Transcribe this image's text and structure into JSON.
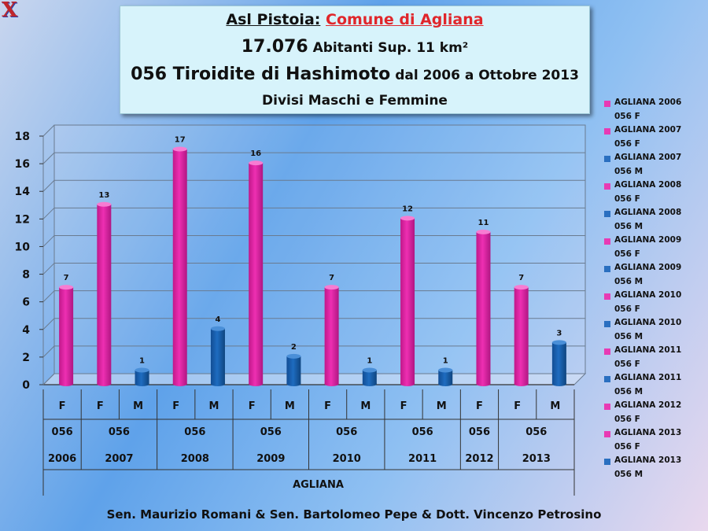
{
  "header": {
    "logo": "X",
    "line1_prefix": "Asl Pistoia:",
    "line1_highlight": "Comune di Agliana",
    "line2_big": "17.076",
    "line2_rest": "Abitanti Sup. 11 km²",
    "line3_big": "056 Tiroidite di Hashimoto",
    "line3_rest": "dal 2006 a Ottobre 2013",
    "line4": "Divisi Maschi e Femmine"
  },
  "footer": "Sen. Maurizio Romani & Sen. Bartolomeo Pepe & Dott. Vincenzo Petrosino",
  "colors": {
    "female": "#ee2fb2",
    "male": "#1e6cc0",
    "female_legend": "#e83ab4",
    "male_legend": "#2a6fc0"
  },
  "chart_data": {
    "type": "bar",
    "ylim": [
      0,
      18
    ],
    "yticks": [
      0,
      2,
      4,
      6,
      8,
      10,
      12,
      14,
      16,
      18
    ],
    "grid": true,
    "legend_position": "right",
    "xlabel": "AGLIANA",
    "bars": [
      {
        "sex": "F",
        "code": "056",
        "year": "2006",
        "value": 7
      },
      {
        "sex": "F",
        "code": "056",
        "year": "2007",
        "value": 13
      },
      {
        "sex": "M",
        "code": "056",
        "year": "2007",
        "value": 1
      },
      {
        "sex": "F",
        "code": "056",
        "year": "2008",
        "value": 17
      },
      {
        "sex": "M",
        "code": "056",
        "year": "2008",
        "value": 4
      },
      {
        "sex": "F",
        "code": "056",
        "year": "2009",
        "value": 16
      },
      {
        "sex": "M",
        "code": "056",
        "year": "2009",
        "value": 2
      },
      {
        "sex": "F",
        "code": "056",
        "year": "2010",
        "value": 7
      },
      {
        "sex": "M",
        "code": "056",
        "year": "2010",
        "value": 1
      },
      {
        "sex": "F",
        "code": "056",
        "year": "2011",
        "value": 12
      },
      {
        "sex": "M",
        "code": "056",
        "year": "2011",
        "value": 1
      },
      {
        "sex": "F",
        "code": "056",
        "year": "2012",
        "value": 11
      },
      {
        "sex": "F",
        "code": "056",
        "year": "2013",
        "value": 7
      },
      {
        "sex": "M",
        "code": "056",
        "year": "2013",
        "value": 3
      }
    ],
    "legend": [
      {
        "line1": "AGLIANA 2006",
        "line2": "056 F",
        "sex": "F"
      },
      {
        "line1": "AGLIANA 2007",
        "line2": "056 F",
        "sex": "F"
      },
      {
        "line1": "AGLIANA 2007",
        "line2": "056 M",
        "sex": "M"
      },
      {
        "line1": "AGLIANA 2008",
        "line2": "056 F",
        "sex": "F"
      },
      {
        "line1": "AGLIANA 2008",
        "line2": "056 M",
        "sex": "M"
      },
      {
        "line1": "AGLIANA 2009",
        "line2": "056 F",
        "sex": "F"
      },
      {
        "line1": "AGLIANA 2009",
        "line2": "056 M",
        "sex": "M"
      },
      {
        "line1": "AGLIANA 2010",
        "line2": "056 F",
        "sex": "F"
      },
      {
        "line1": "AGLIANA 2010",
        "line2": "056 M",
        "sex": "M"
      },
      {
        "line1": "AGLIANA 2011",
        "line2": "056 F",
        "sex": "F"
      },
      {
        "line1": "AGLIANA 2011",
        "line2": "056 M",
        "sex": "M"
      },
      {
        "line1": "AGLIANA 2012",
        "line2": "056 F",
        "sex": "F"
      },
      {
        "line1": "AGLIANA 2013",
        "line2": "056 F",
        "sex": "F"
      },
      {
        "line1": "AGLIANA 2013",
        "line2": "056 M",
        "sex": "M"
      }
    ]
  }
}
